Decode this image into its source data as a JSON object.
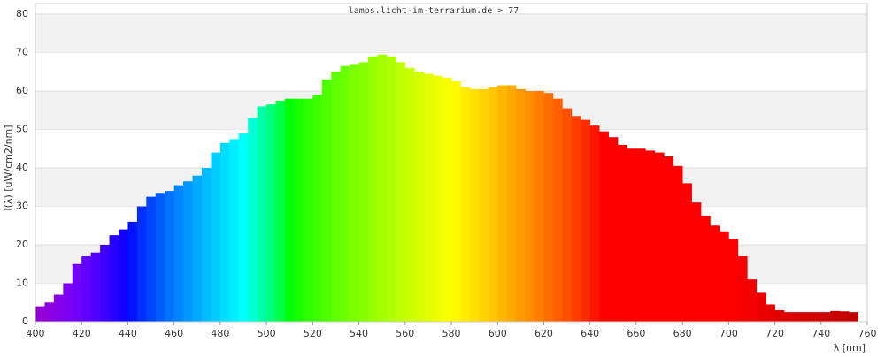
{
  "chart_data": {
    "type": "spectrum",
    "title": "lamps.licht-im-terrarium.de > 77",
    "xlabel": "λ [nm]",
    "ylabel": "I(λ)  [uW/cm2/nm]",
    "x": [
      400,
      404,
      408,
      412,
      416,
      420,
      424,
      428,
      432,
      436,
      440,
      444,
      448,
      452,
      456,
      460,
      464,
      468,
      472,
      476,
      480,
      484,
      488,
      492,
      496,
      500,
      504,
      508,
      512,
      516,
      520,
      524,
      528,
      532,
      536,
      540,
      544,
      548,
      552,
      556,
      560,
      564,
      568,
      572,
      576,
      580,
      584,
      588,
      592,
      596,
      600,
      604,
      608,
      612,
      616,
      620,
      624,
      628,
      632,
      636,
      640,
      644,
      648,
      652,
      656,
      660,
      664,
      668,
      672,
      676,
      680,
      684,
      688,
      692,
      696,
      700,
      704,
      708,
      712,
      716,
      720,
      724,
      728,
      732,
      736,
      740,
      744,
      748,
      752
    ],
    "values": [
      4,
      5,
      7,
      10,
      15,
      17,
      18,
      20,
      22.5,
      24,
      26,
      30,
      32.5,
      33.5,
      34,
      35.5,
      36.5,
      38,
      40,
      44,
      46.5,
      47.5,
      49,
      53,
      56,
      56.5,
      57.5,
      58,
      58,
      58,
      59,
      63,
      65,
      66.5,
      67,
      67.5,
      69,
      69.5,
      69,
      67.5,
      66,
      65,
      64.5,
      64,
      63.5,
      62.5,
      61,
      60.5,
      60.5,
      61,
      61.5,
      61.5,
      60.5,
      60,
      60,
      59.5,
      58,
      55.5,
      53.5,
      52.5,
      51,
      49.5,
      48,
      46,
      45,
      45,
      44.5,
      44,
      43,
      40.5,
      36,
      31,
      27.5,
      25,
      23.5,
      21.5,
      17,
      11,
      7.5,
      4.5,
      3,
      2.5,
      2.5,
      2.5,
      2.5,
      2.5,
      2.8,
      2.7,
      2.5
    ],
    "xlim": [
      400,
      760
    ],
    "ylim": [
      0,
      80
    ],
    "xticks": [
      400,
      420,
      440,
      460,
      480,
      500,
      520,
      540,
      560,
      580,
      600,
      620,
      640,
      660,
      680,
      700,
      720,
      740,
      760
    ],
    "yticks": [
      0,
      10,
      20,
      30,
      40,
      50,
      60,
      70,
      80
    ],
    "grid": "bands",
    "band_color": "#f2f2f2"
  }
}
